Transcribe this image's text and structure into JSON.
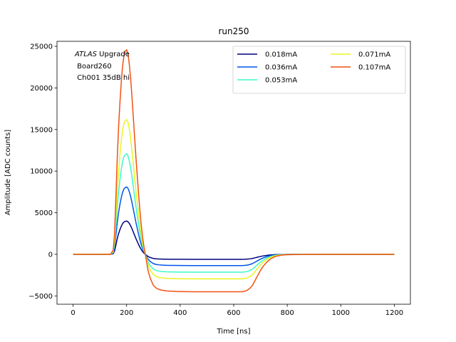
{
  "chart_data": {
    "type": "line",
    "title": "run250",
    "xlabel": "Time [ns]",
    "ylabel": "Amplitude [ADC counts]",
    "xlim": [
      -60,
      1260
    ],
    "ylim": [
      -6000,
      25600
    ],
    "xticks": [
      0,
      200,
      400,
      600,
      800,
      1000,
      1200
    ],
    "yticks": [
      -5000,
      0,
      5000,
      10000,
      15000,
      20000,
      25000
    ],
    "xtick_labels": [
      "0",
      "200",
      "400",
      "600",
      "800",
      "1000",
      "1200"
    ],
    "ytick_labels": [
      "−5000",
      "0",
      "5000",
      "10000",
      "15000",
      "20000",
      "25000"
    ],
    "grid": false,
    "legend": {
      "placement": "top-right",
      "columns": 2
    },
    "annotation": {
      "lines": [
        {
          "italic": "ATLAS",
          "rest": " Upgrade"
        },
        {
          "italic": "",
          "rest": " Board260"
        },
        {
          "italic": "",
          "rest": " Ch001 35dB hi"
        }
      ]
    },
    "shape": {
      "x": [
        0,
        50,
        100,
        140,
        150,
        155,
        160,
        165,
        170,
        175,
        180,
        185,
        190,
        195,
        200,
        205,
        210,
        215,
        220,
        225,
        230,
        235,
        240,
        245,
        250,
        255,
        260,
        265,
        270,
        275,
        280,
        285,
        290,
        295,
        300,
        310,
        320,
        330,
        340,
        350,
        360,
        380,
        400,
        450,
        500,
        550,
        600,
        630,
        640,
        650,
        660,
        670,
        680,
        690,
        700,
        710,
        720,
        730,
        740,
        750,
        760,
        780,
        800,
        850,
        900,
        1000,
        1100,
        1200
      ],
      "y": [
        0,
        0,
        0,
        0,
        0.02,
        0.1,
        0.28,
        0.47,
        0.62,
        0.74,
        0.84,
        0.92,
        0.97,
        0.99,
        1.0,
        0.98,
        0.93,
        0.86,
        0.77,
        0.67,
        0.57,
        0.47,
        0.38,
        0.29,
        0.21,
        0.14,
        0.08,
        0.035,
        -0.0,
        -0.04,
        -0.08,
        -0.105,
        -0.125,
        -0.14,
        -0.155,
        -0.168,
        -0.175,
        -0.179,
        -0.181,
        -0.183,
        -0.184,
        -0.185,
        -0.186,
        -0.187,
        -0.187,
        -0.187,
        -0.187,
        -0.187,
        -0.185,
        -0.18,
        -0.17,
        -0.155,
        -0.13,
        -0.105,
        -0.08,
        -0.06,
        -0.044,
        -0.031,
        -0.021,
        -0.014,
        -0.009,
        -0.004,
        -0.002,
        -0.0005,
        0,
        0,
        0,
        0
      ]
    },
    "series": [
      {
        "name": "0.018mA",
        "color": "#000080",
        "peak": 4000,
        "undershoot": 600
      },
      {
        "name": "0.036mA",
        "color": "#0055e8",
        "peak": 8100,
        "undershoot": 1350
      },
      {
        "name": "0.053mA",
        "color": "#3ef9c8",
        "peak": 12100,
        "undershoot": 2150
      },
      {
        "name": "0.071mA",
        "color": "#e8f620",
        "peak": 16200,
        "undershoot": 2950
      },
      {
        "name": "0.107mA",
        "color": "#f15212",
        "peak": 24600,
        "undershoot": 4500
      }
    ]
  }
}
